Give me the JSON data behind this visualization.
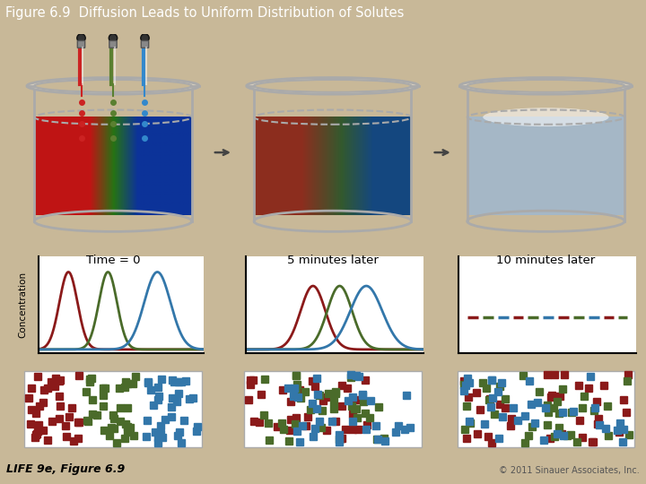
{
  "title": "Figure 6.9  Diffusion Leads to Uniform Distribution of Solutes",
  "title_bg": "#5a9070",
  "title_color": "white",
  "bg_color": "#c8b898",
  "panel_bg": "#c8b898",
  "graph_bg": "white",
  "dot_panel_bg": "#e0d4b8",
  "labels": [
    "Time = 0",
    "5 minutes later",
    "10 minutes later"
  ],
  "footer_left": "LIFE 9e, Figure 6.9",
  "footer_right": "© 2011 Sinauer Associates, Inc.",
  "red_c": "#8b1a1a",
  "green_c": "#4a6b2a",
  "blue_c": "#3377aa",
  "red_liq": "#cc2222",
  "green_liq": "#5a8030",
  "blue_liq": "#2255aa",
  "mixed_liq1_left": "#8b3322",
  "mixed_liq1_right": "#2255aa",
  "mixed_liq2": "#8899aa",
  "arrow_color": "#555555",
  "beaker_edge": "#aaaaaa",
  "dropper_gray": "#555555"
}
